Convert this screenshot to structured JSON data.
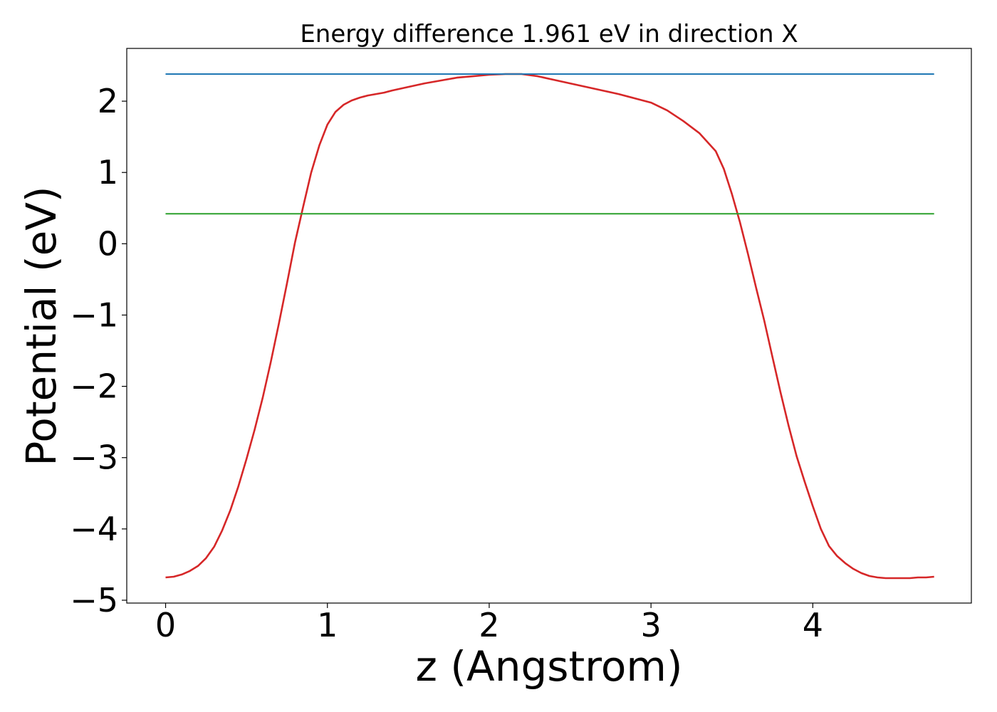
{
  "chart_data": {
    "type": "line",
    "title": "Energy difference 1.961 eV in direction X",
    "xlabel": "z (Angstrom)",
    "ylabel": "Potential (eV)",
    "xlim": [
      -0.24,
      4.98
    ],
    "ylim": [
      -5.04,
      2.74
    ],
    "xticks": [
      0,
      1,
      2,
      3,
      4
    ],
    "yticks": [
      -5,
      -4,
      -3,
      -2,
      -1,
      0,
      1,
      2
    ],
    "xtick_labels": [
      "0",
      "1",
      "2",
      "3",
      "4"
    ],
    "ytick_labels": [
      "−5",
      "−4",
      "−3",
      "−2",
      "−1",
      "0",
      "1",
      "2"
    ],
    "grid": false,
    "legend": "none",
    "series": [
      {
        "color": "#d62728",
        "x": [
          0,
          0.05,
          0.1,
          0.15,
          0.2,
          0.25,
          0.3,
          0.35,
          0.4,
          0.45,
          0.5,
          0.55,
          0.6,
          0.65,
          0.7,
          0.75,
          0.8,
          0.85,
          0.9,
          0.95,
          1.0,
          1.05,
          1.1,
          1.15,
          1.2,
          1.25,
          1.3,
          1.35,
          1.4,
          1.5,
          1.6,
          1.7,
          1.8,
          1.9,
          2.0,
          2.1,
          2.2,
          2.3,
          2.4,
          2.5,
          2.6,
          2.7,
          2.8,
          2.9,
          3.0,
          3.1,
          3.2,
          3.3,
          3.4,
          3.45,
          3.5,
          3.55,
          3.6,
          3.65,
          3.7,
          3.75,
          3.8,
          3.85,
          3.9,
          3.95,
          4.0,
          4.05,
          4.1,
          4.15,
          4.2,
          4.25,
          4.3,
          4.35,
          4.4,
          4.45,
          4.5,
          4.55,
          4.6,
          4.65,
          4.7,
          4.75
        ],
        "values": [
          -4.68,
          -4.67,
          -4.64,
          -4.59,
          -4.52,
          -4.41,
          -4.25,
          -4.02,
          -3.74,
          -3.4,
          -3.02,
          -2.61,
          -2.16,
          -1.66,
          -1.12,
          -0.56,
          0.02,
          0.52,
          1.0,
          1.38,
          1.67,
          1.85,
          1.95,
          2.01,
          2.05,
          2.08,
          2.1,
          2.12,
          2.15,
          2.2,
          2.25,
          2.29,
          2.33,
          2.35,
          2.37,
          2.38,
          2.38,
          2.35,
          2.3,
          2.25,
          2.2,
          2.15,
          2.1,
          2.04,
          1.98,
          1.87,
          1.72,
          1.55,
          1.3,
          1.05,
          0.7,
          0.3,
          -0.15,
          -0.62,
          -1.08,
          -1.58,
          -2.08,
          -2.55,
          -2.98,
          -3.34,
          -3.68,
          -4.0,
          -4.24,
          -4.38,
          -4.48,
          -4.56,
          -4.62,
          -4.66,
          -4.68,
          -4.69,
          -4.69,
          -4.69,
          -4.69,
          -4.68,
          -4.68,
          -4.67
        ]
      },
      {
        "color": "#1f77b4",
        "x": [
          0,
          4.75
        ],
        "values": [
          2.38,
          2.38
        ]
      },
      {
        "color": "#2ca02c",
        "x": [
          0,
          4.75
        ],
        "values": [
          0.42,
          0.42
        ]
      }
    ]
  }
}
